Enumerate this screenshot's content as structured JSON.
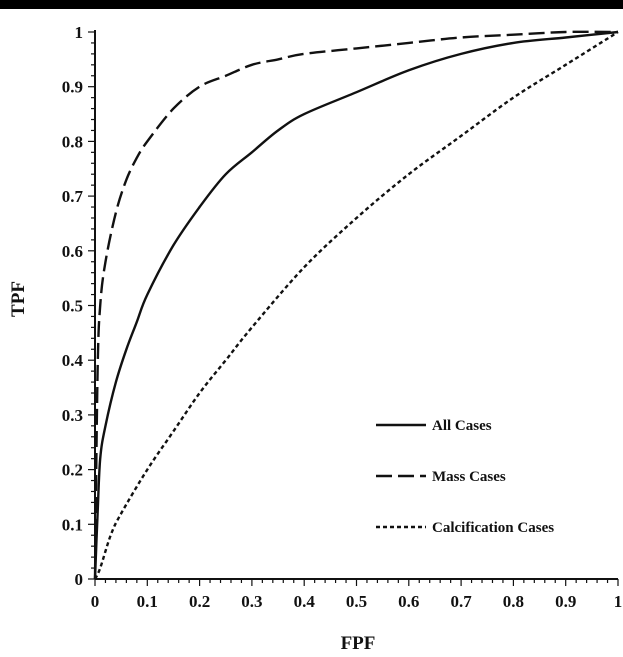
{
  "chart_data": {
    "type": "line",
    "title": "",
    "xlabel": "FPF",
    "ylabel": "TPF",
    "xlim": [
      0,
      1
    ],
    "ylim": [
      0,
      1
    ],
    "xticks": [
      "0",
      "0.1",
      "0.2",
      "0.3",
      "0.4",
      "0.5",
      "0.6",
      "0.7",
      "0.8",
      "0.9",
      "1"
    ],
    "yticks": [
      "0",
      "0.1",
      "0.2",
      "0.3",
      "0.4",
      "0.5",
      "0.6",
      "0.7",
      "0.8",
      "0.9",
      "1"
    ],
    "grid": false,
    "legend_position": "bottom-right",
    "series": [
      {
        "name": "All Cases",
        "style": "solid",
        "x": [
          0,
          0.005,
          0.01,
          0.02,
          0.04,
          0.06,
          0.08,
          0.1,
          0.15,
          0.2,
          0.25,
          0.3,
          0.35,
          0.4,
          0.5,
          0.6,
          0.7,
          0.8,
          0.9,
          1
        ],
        "y": [
          0,
          0.12,
          0.22,
          0.28,
          0.36,
          0.42,
          0.47,
          0.52,
          0.61,
          0.68,
          0.74,
          0.78,
          0.82,
          0.85,
          0.89,
          0.93,
          0.96,
          0.98,
          0.99,
          1
        ]
      },
      {
        "name": "Mass Cases",
        "style": "dashed",
        "x": [
          0,
          0.005,
          0.01,
          0.02,
          0.04,
          0.06,
          0.08,
          0.1,
          0.15,
          0.2,
          0.25,
          0.3,
          0.35,
          0.4,
          0.5,
          0.6,
          0.7,
          0.8,
          0.9,
          1
        ],
        "y": [
          0,
          0.38,
          0.5,
          0.58,
          0.67,
          0.73,
          0.77,
          0.8,
          0.86,
          0.9,
          0.92,
          0.94,
          0.95,
          0.96,
          0.97,
          0.98,
          0.99,
          0.995,
          1,
          1
        ]
      },
      {
        "name": "Calcification Cases",
        "style": "dotted",
        "x": [
          0,
          0.01,
          0.03,
          0.05,
          0.1,
          0.15,
          0.2,
          0.25,
          0.3,
          0.4,
          0.5,
          0.6,
          0.7,
          0.8,
          0.9,
          1
        ],
        "y": [
          0,
          0.02,
          0.08,
          0.12,
          0.2,
          0.27,
          0.34,
          0.4,
          0.46,
          0.57,
          0.66,
          0.74,
          0.81,
          0.88,
          0.94,
          1
        ]
      }
    ],
    "colors": {
      "line": "#111111",
      "top_band": "#000000",
      "background": "#ffffff"
    }
  }
}
